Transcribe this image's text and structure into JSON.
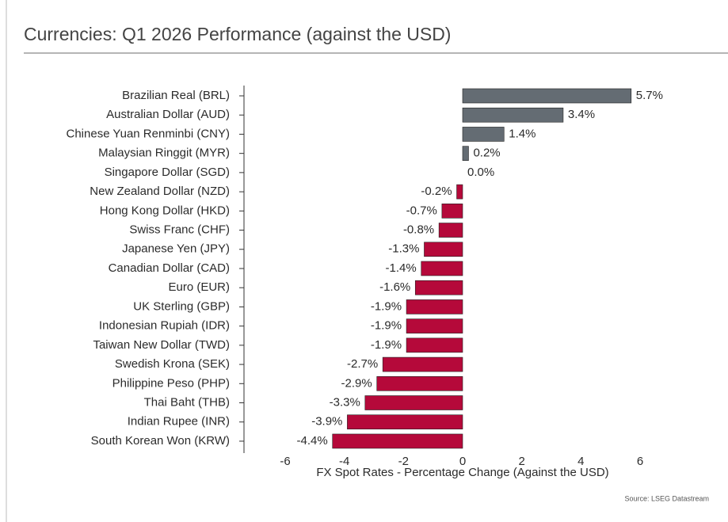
{
  "chart_data": {
    "type": "barh",
    "title": "Currencies: Q1 2026 Performance (against the USD)",
    "x_label": "FX Spot Rates - Percentage Change (Against the USD)",
    "source": "Source: LSEG Datastream",
    "categories": [
      "Brazilian Real (BRL)",
      "Australian Dollar (AUD)",
      "Chinese Yuan Renminbi (CNY)",
      "Malaysian Ringgit (MYR)",
      "Singapore Dollar (SGD)",
      "New Zealand Dollar (NZD)",
      "Hong Kong Dollar (HKD)",
      "Swiss Franc (CHF)",
      "Japanese Yen (JPY)",
      "Canadian Dollar (CAD)",
      "Euro (EUR)",
      "UK Sterling (GBP)",
      "Indonesian Rupiah (IDR)",
      "Taiwan New Dollar (TWD)",
      "Swedish Krona (SEK)",
      "Philippine Peso (PHP)",
      "Thai Baht (THB)",
      "Indian Rupee (INR)",
      "South Korean Won (KRW)"
    ],
    "values": [
      5.7,
      3.4,
      1.4,
      0.2,
      0.0,
      -0.2,
      -0.7,
      -0.8,
      -1.3,
      -1.4,
      -1.6,
      -1.9,
      -1.9,
      -1.9,
      -2.7,
      -2.9,
      -3.3,
      -3.9,
      -4.4
    ],
    "value_labels": [
      "5.7%",
      "3.4%",
      "1.4%",
      "0.2%",
      "0.0%",
      "-0.2%",
      "-0.7%",
      "-0.8%",
      "-1.3%",
      "-1.4%",
      "-1.6%",
      "-1.9%",
      "-1.9%",
      "-1.9%",
      "-2.7%",
      "-2.9%",
      "-3.3%",
      "-3.9%",
      "-4.4%"
    ],
    "positive_color": "#646c73",
    "negative_color": "#b5093a",
    "xlim": [
      -6,
      6
    ],
    "xticks": [
      -6,
      -4,
      -2,
      0,
      2,
      4,
      6
    ]
  }
}
